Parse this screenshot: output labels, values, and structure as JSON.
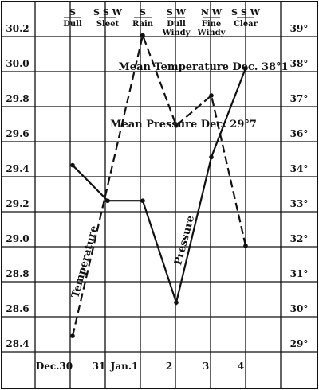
{
  "chart_data": {
    "type": "line",
    "categories": [
      "Dec.30",
      "31",
      "Jan.1",
      "2",
      "3",
      "4"
    ],
    "weather": [
      {
        "wind": "S",
        "condition": "Dull"
      },
      {
        "wind": "S S W",
        "condition": "Sleet"
      },
      {
        "wind": "S",
        "condition": "Rain"
      },
      {
        "wind": "S W",
        "condition": "Dull",
        "condition2": "Windy"
      },
      {
        "wind": "N W",
        "condition": "Fine",
        "condition2": "Windy"
      },
      {
        "wind": "S S W",
        "condition": "Clear"
      }
    ],
    "series": [
      {
        "name": "Pressure",
        "axis": "left",
        "style": "solid",
        "x": [
          0,
          1,
          2,
          3,
          4,
          5
        ],
        "values": [
          29.45,
          29.23,
          29.23,
          28.6,
          29.5,
          30.05
        ]
      },
      {
        "name": "Temperature",
        "axis": "right",
        "style": "dashed",
        "x": [
          0,
          2,
          3,
          4,
          5
        ],
        "values": [
          29,
          39,
          36,
          37,
          32
        ]
      }
    ],
    "left_axis": {
      "ticks": [
        30.2,
        30.0,
        29.8,
        29.6,
        29.4,
        29.2,
        29.0,
        28.8,
        28.6,
        28.4
      ],
      "labels": [
        "30.2",
        "30.0",
        "29.8",
        "29.6",
        "29.4",
        "29.2",
        "29.0",
        "28.8",
        "28.6",
        "28.4"
      ],
      "ylim": [
        28.3,
        30.3
      ]
    },
    "right_axis": {
      "ticks": [
        39,
        38,
        37,
        36,
        34,
        33,
        32,
        31,
        30,
        29
      ],
      "labels": [
        "39°",
        "38°",
        "37°",
        "36°",
        "34°",
        "33°",
        "32°",
        "31°",
        "30°",
        "29°"
      ]
    },
    "annotations": {
      "mean_temperature": "Mean Temperature Dec. 38°1",
      "mean_pressure": "Mean Pressure Dec. 29°7",
      "temperature_label": "Temperature",
      "pressure_label": "Pressure"
    },
    "grid": true
  }
}
